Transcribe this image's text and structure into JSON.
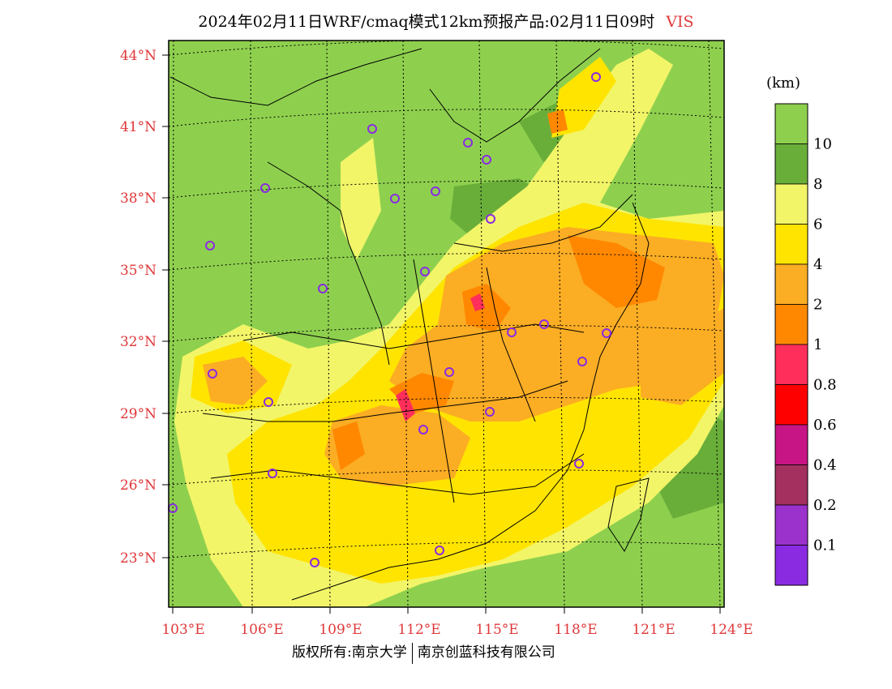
{
  "title": {
    "text": "2024年02月11日WRF/cmaq模式12km预报产品:02月11日09时",
    "variable": "VIS"
  },
  "colors": {
    "label_red": "#e0383a",
    "station_marker": "#8a2be2"
  },
  "map": {
    "lon_ticks": [
      "103°E",
      "106°E",
      "109°E",
      "112°E",
      "115°E",
      "118°E",
      "121°E",
      "124°E"
    ],
    "lat_ticks": [
      "44°N",
      "41°N",
      "38°N",
      "35°N",
      "32°N",
      "29°N",
      "26°N",
      "23°N"
    ]
  },
  "legend": {
    "unit": "(km)",
    "labels": [
      "10",
      "8",
      "6",
      "4",
      "2",
      "1",
      "0.8",
      "0.6",
      "0.4",
      "0.2",
      "0.1"
    ],
    "colors": [
      "#8ed04e",
      "#6aae3a",
      "#f2f568",
      "#ffe400",
      "#fbad24",
      "#ff8800",
      "#ff2e5a",
      "#ff0000",
      "#c71585",
      "#a3305f",
      "#9b32cc",
      "#8a2be2"
    ]
  },
  "footer": {
    "left": "版权所有:南京大学",
    "right": "南京创蓝科技有限公司"
  }
}
